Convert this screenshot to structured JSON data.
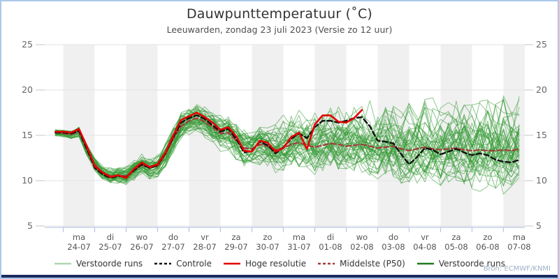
{
  "header": {
    "title": "Dauwpunttemperatuur (˚C)",
    "subtitle": "Leeuwarden, zondag 23 juli 2023 (Versie zo 12 uur)"
  },
  "chart_data": {
    "type": "line",
    "title": "Dauwpunttemperatuur (˚C)",
    "subtitle": "Leeuwarden, zondag 23 juli 2023 (Versie zo 12 uur)",
    "ylim": [
      5,
      25
    ],
    "yticks": [
      5,
      10,
      15,
      20,
      25
    ],
    "grid": true,
    "day_bands_alternating_gray": true,
    "x_axis_days": [
      {
        "weekday": "ma",
        "date": "24-07"
      },
      {
        "weekday": "di",
        "date": "25-07"
      },
      {
        "weekday": "wo",
        "date": "26-07"
      },
      {
        "weekday": "do",
        "date": "27-07"
      },
      {
        "weekday": "vr",
        "date": "28-07"
      },
      {
        "weekday": "za",
        "date": "29-07"
      },
      {
        "weekday": "zo",
        "date": "30-07"
      },
      {
        "weekday": "ma",
        "date": "31-07"
      },
      {
        "weekday": "di",
        "date": "01-08"
      },
      {
        "weekday": "wo",
        "date": "02-08"
      },
      {
        "weekday": "do",
        "date": "03-08"
      },
      {
        "weekday": "vr",
        "date": "04-08"
      },
      {
        "weekday": "za",
        "date": "05-08"
      },
      {
        "weekday": "zo",
        "date": "06-08"
      },
      {
        "weekday": "ma",
        "date": "07-08"
      }
    ],
    "t_start_days": 0.25,
    "t_step_days": 0.25,
    "series": [
      {
        "name": "Hoge resolutie",
        "color": "#e60000",
        "style": "solid",
        "values": [
          15.4,
          15.4,
          15.3,
          15.7,
          13.8,
          11.6,
          10.9,
          10.4,
          10.6,
          10.3,
          11.3,
          12.0,
          11.5,
          11.8,
          13.1,
          15.0,
          16.7,
          17.1,
          17.5,
          17.0,
          16.4,
          15.6,
          15.9,
          14.9,
          13.3,
          13.2,
          14.4,
          14.2,
          13.2,
          13.6,
          14.8,
          15.3,
          13.5,
          16.2,
          17.2,
          17.2,
          16.5,
          16.4,
          16.9,
          17.8
        ]
      },
      {
        "name": "Controle",
        "color": "#111111",
        "style": "dashed",
        "values": [
          15.3,
          15.3,
          15.2,
          15.5,
          13.5,
          11.4,
          10.7,
          10.3,
          10.5,
          10.4,
          11.1,
          11.8,
          11.4,
          11.7,
          13.0,
          14.8,
          16.4,
          16.9,
          17.2,
          16.8,
          16.1,
          15.4,
          15.7,
          14.6,
          13.1,
          13.3,
          14.3,
          13.9,
          13.0,
          13.7,
          14.6,
          15.2,
          14.7,
          15.9,
          16.6,
          16.6,
          16.4,
          16.6,
          16.9,
          17.0,
          16.0,
          14.4,
          14.3,
          14.1,
          12.9,
          11.8,
          12.6,
          13.6,
          13.4,
          12.9,
          13.2,
          13.5,
          13.1,
          12.8,
          13.0,
          12.8,
          12.3,
          12.1,
          12.0,
          12.3
        ]
      },
      {
        "name": "Middelste (P50)",
        "color": "#a33b3b",
        "style": "dashed",
        "values": [
          15.3,
          15.2,
          15.1,
          15.4,
          13.4,
          11.8,
          10.9,
          10.5,
          10.6,
          10.5,
          11.2,
          11.7,
          11.4,
          11.6,
          12.9,
          14.6,
          16.0,
          16.6,
          16.9,
          16.5,
          15.9,
          15.2,
          15.3,
          14.4,
          13.6,
          13.5,
          14.0,
          13.8,
          13.4,
          13.6,
          14.0,
          14.2,
          13.9,
          13.7,
          13.9,
          14.1,
          14.0,
          13.8,
          13.9,
          14.0,
          13.8,
          13.6,
          13.7,
          13.8,
          13.5,
          13.3,
          13.5,
          13.7,
          13.5,
          13.4,
          13.5,
          13.6,
          13.4,
          13.3,
          13.4,
          13.3,
          13.3,
          13.4,
          13.3,
          13.5
        ]
      },
      {
        "name": "Verstoorde runs",
        "color": "#339933",
        "style": "solid",
        "generated_ensemble": true,
        "count": 50,
        "seed": 11,
        "spread_base": 0.3,
        "spread_growth": 0.3
      }
    ]
  },
  "legend": {
    "items": [
      {
        "label": "Verstoorde runs",
        "color": "#aed6ae",
        "dash": "none"
      },
      {
        "label": "Controle",
        "color": "#111111",
        "dash": "4 3"
      },
      {
        "label": "Hoge resolutie",
        "color": "#e60000",
        "dash": "none"
      },
      {
        "label": "Middelste (P50)",
        "color": "#a33b3b",
        "dash": "4 3"
      },
      {
        "label": "Verstoorde runs",
        "color": "#1f7a1f",
        "dash": "none"
      }
    ]
  },
  "footer": {
    "source": "Bron: ECMWF/KNMI"
  },
  "colors": {
    "frame_border": "#abc8ea",
    "bottom_bar": "#1b2a5e",
    "day_band_gray": "#f0f0f0",
    "gridline": "#e3e3e3",
    "axis_line": "#b4c9e4",
    "axis_label": "#666666"
  }
}
